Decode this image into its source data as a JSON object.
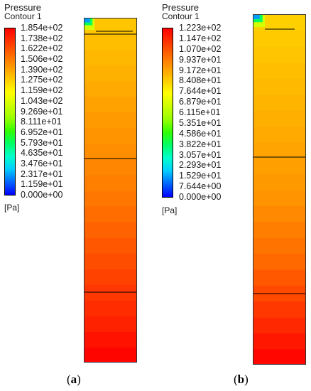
{
  "panels": [
    {
      "id": "a",
      "legend": {
        "title": "Pressure",
        "subtitle": "Contour 1",
        "unit": "[Pa]",
        "ticks": [
          "1.854e+02",
          "1.738e+02",
          "1.622e+02",
          "1.506e+02",
          "1.390e+02",
          "1.275e+02",
          "1.159e+02",
          "1.043e+02",
          "9.269e+01",
          "8.111e+01",
          "6.952e+01",
          "5.793e+01",
          "4.635e+01",
          "3.476e+01",
          "2.317e+01",
          "1.159e+01",
          "0.000e+00"
        ]
      },
      "label_open": "(",
      "label_letter": "a",
      "label_close": ")",
      "contour": {
        "min_pa": 0,
        "max_pa": 185.4,
        "band_values_top_to_bottom": [
          130,
          132,
          134,
          136,
          138,
          140,
          142,
          144,
          146,
          148,
          150,
          152,
          155,
          158,
          161,
          164,
          167,
          170,
          173,
          176,
          180,
          184
        ]
      }
    },
    {
      "id": "b",
      "legend": {
        "title": "Pressure",
        "subtitle": "Contour 1",
        "unit": "[Pa]",
        "ticks": [
          "1.223e+02",
          "1.147e+02",
          "1.070e+02",
          "9.937e+01",
          "9.172e+01",
          "8.408e+01",
          "7.644e+01",
          "6.879e+01",
          "6.115e+01",
          "5.351e+01",
          "4.586e+01",
          "3.822e+01",
          "3.057e+01",
          "2.293e+01",
          "1.529e+01",
          "7.644e+00",
          "0.000e+00"
        ]
      },
      "label_open": "(",
      "label_letter": "b",
      "label_close": ")",
      "contour": {
        "min_pa": 0,
        "max_pa": 122.3,
        "band_values_top_to_bottom": [
          84,
          85,
          86,
          87,
          88,
          89,
          90,
          91,
          92,
          93,
          94,
          95,
          97,
          99,
          101,
          103,
          106,
          109,
          112,
          115,
          118,
          121
        ]
      }
    }
  ],
  "colors": {
    "scale": [
      "#0000ff",
      "#0066ff",
      "#00ccff",
      "#00ffcc",
      "#00ff66",
      "#33ff00",
      "#99ff00",
      "#ccff00",
      "#ffff00",
      "#ffcc00",
      "#ff9900",
      "#ff6600",
      "#ff3300",
      "#ff0000"
    ],
    "line": "#000000"
  }
}
